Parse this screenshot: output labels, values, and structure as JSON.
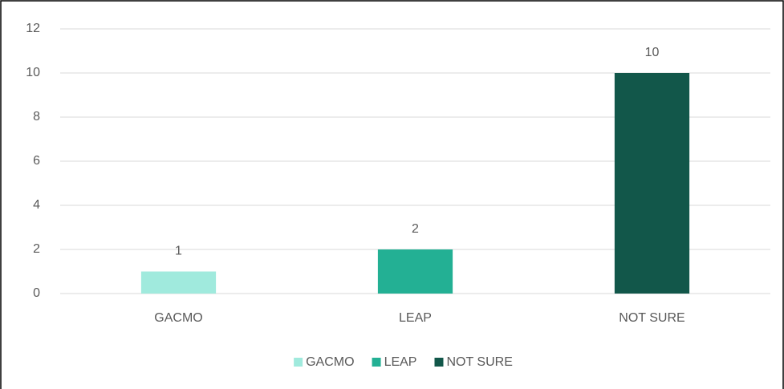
{
  "chart_data": {
    "type": "bar",
    "categories": [
      "GACMO",
      "LEAP",
      "NOT SURE"
    ],
    "values": [
      1,
      2,
      10
    ],
    "colors": [
      "#a0eadd",
      "#23b094",
      "#12574a"
    ],
    "ylim": [
      0,
      12
    ],
    "yticks": [
      0,
      2,
      4,
      6,
      8,
      10,
      12
    ],
    "grid": true,
    "data_labels": true,
    "legend": "bottom"
  }
}
